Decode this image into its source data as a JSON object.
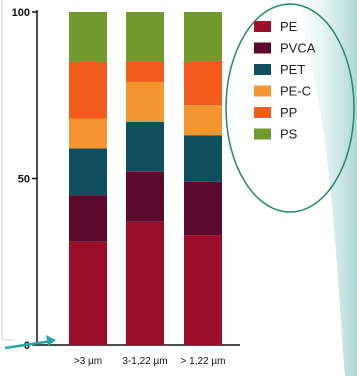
{
  "chart_data": {
    "type": "bar",
    "stacked": true,
    "categories": [
      ">3 µm",
      "3-1,22 µm",
      "> 1,22 µm"
    ],
    "series": [
      {
        "name": "PE",
        "color": "#9b0f2a",
        "values": [
          31,
          37,
          33
        ]
      },
      {
        "name": "PVCA",
        "color": "#5a0a2a",
        "values": [
          14,
          15,
          16
        ]
      },
      {
        "name": "PET",
        "color": "#0f4f5e",
        "values": [
          14,
          15,
          14
        ]
      },
      {
        "name": "PE-C",
        "color": "#f39630",
        "values": [
          9,
          12,
          9
        ]
      },
      {
        "name": "PP",
        "color": "#f15b1c",
        "values": [
          17,
          6,
          13
        ]
      },
      {
        "name": "PS",
        "color": "#6f9a2b",
        "values": [
          15,
          15,
          15
        ]
      }
    ],
    "yticks": [
      0,
      50,
      100
    ],
    "ylim": [
      0,
      100
    ],
    "xlabel": "",
    "ylabel": "",
    "title": "",
    "legend_position": "right"
  }
}
